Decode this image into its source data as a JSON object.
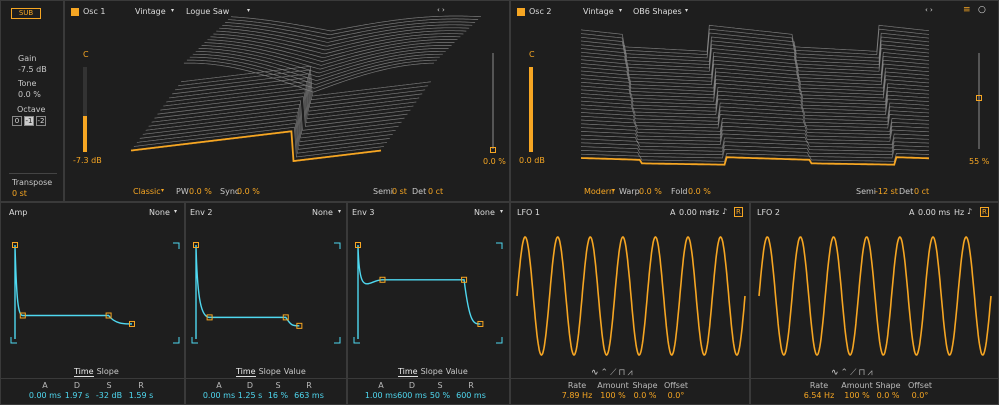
{
  "left_panel": {
    "sub_label": "SUB",
    "gain_label": "Gain",
    "gain_value": "-7.5 dB",
    "tone_label": "Tone",
    "tone_value": "0.0 %",
    "octave_label": "Octave",
    "octave_options": [
      "0",
      "-1",
      "-2"
    ],
    "transpose_label": "Transpose",
    "transpose_value": "0 st"
  },
  "osc1": {
    "title": "Osc 1",
    "type": "Vintage",
    "wave": "Logue Saw",
    "pan_label": "C",
    "level_value": "-7.3 dB",
    "right_value": "0.0 %",
    "mode": "Classic",
    "pw_label": "PW",
    "pw_value": "0.0 %",
    "sync_label": "Sync",
    "sync_value": "0.0 %",
    "semi_label": "Semi",
    "semi_value": "0 st",
    "det_label": "Det",
    "det_value": "0 ct"
  },
  "osc2": {
    "title": "Osc 2",
    "type": "Vintage",
    "wave": "OB6 Shapes",
    "pan_label": "C",
    "level_value": "0.0 dB",
    "right_value": "55 %",
    "mode": "Modern",
    "warp_label": "Warp",
    "warp_value": "0.0 %",
    "fold_label": "Fold",
    "fold_value": "0.0 %",
    "semi_label": "Semi",
    "semi_value": "-12 st",
    "det_label": "Det",
    "det_value": "0 ct"
  },
  "envelopes": [
    {
      "title": "Amp",
      "dest": "None",
      "tabs": [
        "Time",
        "Slope"
      ],
      "params": [
        {
          "k": "A",
          "v": "0.00 ms"
        },
        {
          "k": "D",
          "v": "1.97 s"
        },
        {
          "k": "S",
          "v": "-32 dB"
        },
        {
          "k": "R",
          "v": "1.59 s"
        }
      ]
    },
    {
      "title": "Env 2",
      "dest": "None",
      "tabs": [
        "Time",
        "Slope",
        "Value"
      ],
      "params": [
        {
          "k": "A",
          "v": "0.00 ms"
        },
        {
          "k": "D",
          "v": "1.25 s"
        },
        {
          "k": "S",
          "v": "16 %"
        },
        {
          "k": "R",
          "v": "663 ms"
        }
      ]
    },
    {
      "title": "Env 3",
      "dest": "None",
      "tabs": [
        "Time",
        "Slope",
        "Value"
      ],
      "params": [
        {
          "k": "A",
          "v": "1.00 ms"
        },
        {
          "k": "D",
          "v": "600 ms"
        },
        {
          "k": "S",
          "v": "50 %"
        },
        {
          "k": "R",
          "v": "600 ms"
        }
      ]
    }
  ],
  "lfos": [
    {
      "title": "LFO 1",
      "a_label": "A",
      "a_value": "0.00 ms",
      "hz_label": "Hz",
      "r_label": "R",
      "params": [
        {
          "k": "Rate",
          "v": "7.89 Hz"
        },
        {
          "k": "Amount",
          "v": "100 %"
        },
        {
          "k": "Shape",
          "v": "0.0 %"
        },
        {
          "k": "Offset",
          "v": "0.0°"
        }
      ]
    },
    {
      "title": "LFO 2",
      "a_label": "A",
      "a_value": "0.00 ms",
      "hz_label": "Hz",
      "r_label": "R",
      "params": [
        {
          "k": "Rate",
          "v": "6.54 Hz"
        },
        {
          "k": "Amount",
          "v": "100 %"
        },
        {
          "k": "Shape",
          "v": "0.0 %"
        },
        {
          "k": "Offset",
          "v": "0.0°"
        }
      ]
    }
  ],
  "colors": {
    "accent": "#f6a623",
    "envelope": "#4fd8f0",
    "wave_lines": "#8a8a8a"
  },
  "icons": [
    "hamburger-icon",
    "circle-icon",
    "note-icon",
    "retrigger-icon",
    "prev-next-arrows-icon",
    "dropdown-icon"
  ]
}
